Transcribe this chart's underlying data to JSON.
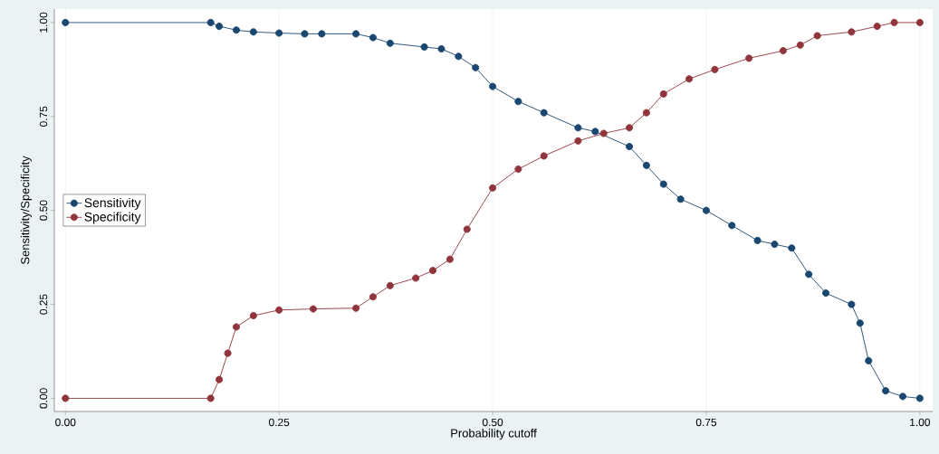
{
  "chart_data": {
    "type": "line",
    "xlabel": "Probability cutoff",
    "ylabel": "Sensitivity/Specificity",
    "xlim": [
      -0.013,
      1.015
    ],
    "ylim": [
      -0.035,
      1.036
    ],
    "xticks": [
      {
        "value": 0,
        "label": "0.00"
      },
      {
        "value": 0.25,
        "label": "0.25"
      },
      {
        "value": 0.5,
        "label": "0.50"
      },
      {
        "value": 0.75,
        "label": "0.75"
      },
      {
        "value": 1,
        "label": "1.00"
      }
    ],
    "yticks": [
      {
        "value": 0,
        "label": "0.00"
      },
      {
        "value": 0.25,
        "label": "0.25"
      },
      {
        "value": 0.5,
        "label": "0.50"
      },
      {
        "value": 0.75,
        "label": "0.75"
      },
      {
        "value": 1,
        "label": "1.00"
      }
    ],
    "grid": "x",
    "legend": "left",
    "marker": "circle",
    "line_style": "solid",
    "series": [
      {
        "name": "Sensitivity",
        "color": "#1a476f",
        "x": [
          0,
          0.17,
          0.18,
          0.2,
          0.22,
          0.25,
          0.28,
          0.3,
          0.34,
          0.36,
          0.38,
          0.42,
          0.44,
          0.46,
          0.48,
          0.5,
          0.53,
          0.56,
          0.6,
          0.62,
          0.66,
          0.68,
          0.7,
          0.72,
          0.75,
          0.78,
          0.81,
          0.83,
          0.85,
          0.87,
          0.89,
          0.92,
          0.93,
          0.94,
          0.96,
          0.98,
          1.0
        ],
        "values": [
          1,
          1,
          0.99,
          0.98,
          0.975,
          0.972,
          0.97,
          0.97,
          0.97,
          0.96,
          0.945,
          0.935,
          0.93,
          0.91,
          0.88,
          0.83,
          0.79,
          0.76,
          0.72,
          0.71,
          0.67,
          0.62,
          0.57,
          0.53,
          0.5,
          0.46,
          0.42,
          0.41,
          0.4,
          0.33,
          0.28,
          0.25,
          0.2,
          0.1,
          0.02,
          0.005,
          0
        ]
      },
      {
        "name": "Specificity",
        "color": "#90353b",
        "x": [
          0,
          0.17,
          0.18,
          0.19,
          0.2,
          0.22,
          0.25,
          0.29,
          0.34,
          0.36,
          0.38,
          0.41,
          0.43,
          0.45,
          0.47,
          0.5,
          0.53,
          0.56,
          0.6,
          0.63,
          0.66,
          0.68,
          0.7,
          0.73,
          0.76,
          0.8,
          0.84,
          0.86,
          0.88,
          0.92,
          0.95,
          0.97,
          1.0
        ],
        "values": [
          0,
          0,
          0.05,
          0.12,
          0.19,
          0.22,
          0.235,
          0.238,
          0.24,
          0.27,
          0.3,
          0.32,
          0.34,
          0.37,
          0.45,
          0.56,
          0.61,
          0.645,
          0.685,
          0.705,
          0.72,
          0.76,
          0.81,
          0.85,
          0.875,
          0.905,
          0.925,
          0.94,
          0.965,
          0.975,
          0.99,
          1.0,
          1.0
        ]
      }
    ]
  }
}
